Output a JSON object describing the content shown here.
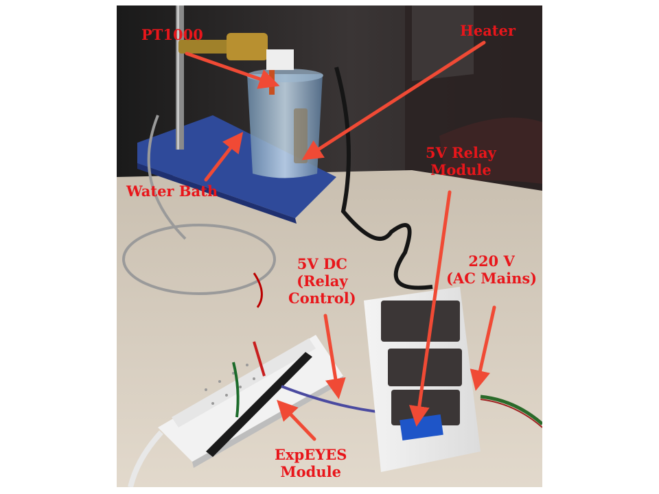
{
  "figure": {
    "scene": "lab-bench-temperature-control-setup",
    "labels": {
      "pt1000": [
        "PT1000"
      ],
      "heater": [
        "Heater"
      ],
      "water_bath": [
        "Water Bath"
      ],
      "relay_module": [
        "5V Relay",
        "Module"
      ],
      "relay_control": [
        "5V DC",
        "(Relay",
        "Control)"
      ],
      "ac_mains": [
        "220 V",
        "(AC Mains)"
      ],
      "expeyes": [
        "ExpEYES",
        "Module"
      ]
    },
    "colors": {
      "annotation": "#e8161b",
      "arrow": "#f04a35",
      "background": "#ffffff"
    }
  }
}
